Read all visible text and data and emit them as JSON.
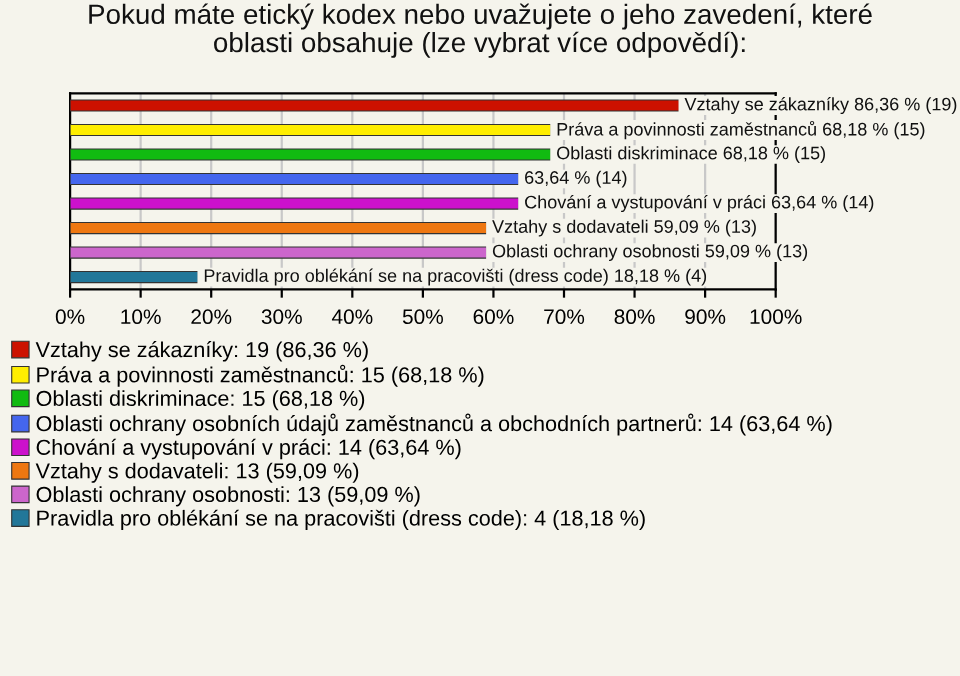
{
  "chart_data": {
    "type": "bar",
    "orientation": "horizontal",
    "title": "Pokud máte etický kodex nebo uvažujete o jeho zavedení, které\noblasti obsahuje (lze vybrat více odpovědí):",
    "categories": [
      null,
      null,
      null,
      null,
      null,
      null,
      null,
      null
    ],
    "series": [
      {
        "name": "Vztahy se zákazníky: 19 (86,36 %)",
        "color": "#cc1100",
        "values": [
          86.36,
          null,
          null,
          null,
          null,
          null,
          null,
          null
        ],
        "value_labels": [
          "Vztahy se zákazníky 86,36 % (19)",
          null,
          null,
          null,
          null,
          null,
          null,
          null
        ]
      },
      {
        "name": "Práva a povinnosti zaměstnanců: 15 (68,18 %)",
        "color": "#ffee00",
        "values": [
          null,
          68.18,
          null,
          null,
          null,
          null,
          null,
          null
        ],
        "value_labels": [
          null,
          "Práva a povinnosti zaměstnanců 68,18 % (15)",
          null,
          null,
          null,
          null,
          null,
          null
        ]
      },
      {
        "name": "Oblasti diskriminace: 15 (68,18 %)",
        "color": "#11bb11",
        "values": [
          null,
          null,
          68.18,
          null,
          null,
          null,
          null,
          null
        ],
        "value_labels": [
          null,
          null,
          "Oblasti diskriminace 68,18 % (15)",
          null,
          null,
          null,
          null,
          null
        ]
      },
      {
        "name": "Oblasti ochrany osobních údajů zaměstnanců a obchodních partnerů: 14 (63,64 %)",
        "color": "#4466ee",
        "values": [
          null,
          null,
          null,
          63.64,
          null,
          null,
          null,
          null
        ],
        "value_labels": [
          null,
          null,
          null,
          "63,64 % (14)",
          null,
          null,
          null,
          null
        ]
      },
      {
        "name": "Chování a vystupování v práci: 14 (63,64 %)",
        "color": "#cc11cc",
        "values": [
          null,
          null,
          null,
          null,
          63.64,
          null,
          null,
          null
        ],
        "value_labels": [
          null,
          null,
          null,
          null,
          "Chování a vystupování v práci 63,64 % (14)",
          null,
          null,
          null
        ]
      },
      {
        "name": "Vztahy s dodavateli: 13 (59,09 %)",
        "color": "#ee7711",
        "values": [
          null,
          null,
          null,
          null,
          null,
          59.09,
          null,
          null
        ],
        "value_labels": [
          null,
          null,
          null,
          null,
          null,
          "Vztahy s dodavateli 59,09 % (13)",
          null,
          null
        ]
      },
      {
        "name": "Oblasti ochrany osobnosti: 13 (59,09 %)",
        "color": "#cc66cc",
        "values": [
          null,
          null,
          null,
          null,
          null,
          null,
          59.09,
          null
        ],
        "value_labels": [
          null,
          null,
          null,
          null,
          null,
          null,
          "Oblasti ochrany osobnosti 59,09 % (13)",
          null
        ]
      },
      {
        "name": "Pravidla pro oblékání se na pracovišti (dress code): 4 (18,18 %)",
        "color": "#227799",
        "values": [
          null,
          null,
          null,
          null,
          null,
          null,
          null,
          18.18
        ],
        "value_labels": [
          null,
          null,
          null,
          null,
          null,
          null,
          null,
          "Pravidla pro oblékání se na pracovišti (dress code) 18,18 % (4)"
        ]
      }
    ],
    "xlim": [
      0,
      100
    ],
    "xticks": [
      {
        "value": 0,
        "label": "0%"
      },
      {
        "value": 10,
        "label": "10%"
      },
      {
        "value": 20,
        "label": "20%"
      },
      {
        "value": 30,
        "label": "30%"
      },
      {
        "value": 40,
        "label": "40%"
      },
      {
        "value": 50,
        "label": "50%"
      },
      {
        "value": 60,
        "label": "60%"
      },
      {
        "value": 70,
        "label": "70%"
      },
      {
        "value": 80,
        "label": "80%"
      },
      {
        "value": 90,
        "label": "90%"
      },
      {
        "value": 100,
        "label": "100%"
      }
    ],
    "tick_labels": "x",
    "grid": "x",
    "legend": "bottom"
  }
}
